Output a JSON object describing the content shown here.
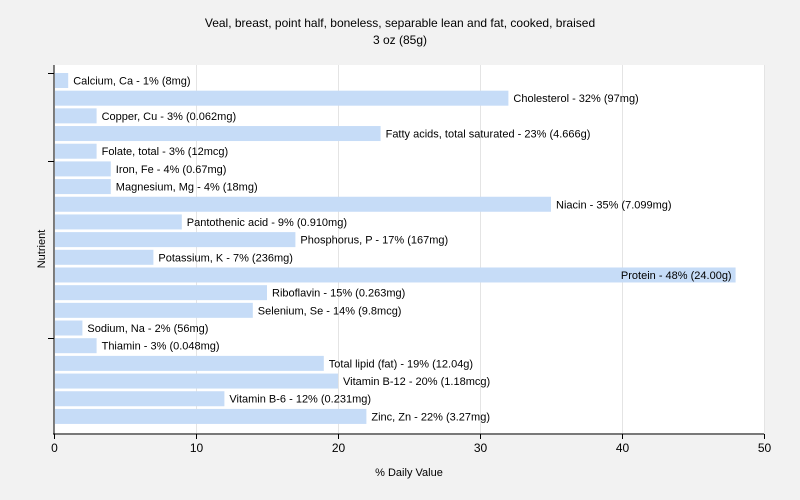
{
  "chart_data": {
    "type": "bar",
    "orientation": "horizontal",
    "title": "Veal, breast, point half, boneless, separable lean and fat, cooked, braised",
    "subtitle": "3 oz (85g)",
    "xlabel": "% Daily Value",
    "ylabel": "Nutrient",
    "xlim": [
      0,
      50
    ],
    "xticks": [
      0,
      10,
      20,
      30,
      40,
      50
    ],
    "grid": true,
    "legend": "none",
    "bar_color": "#c6dcf7",
    "categories": [
      "Calcium, Ca",
      "Cholesterol",
      "Copper, Cu",
      "Fatty acids, total saturated",
      "Folate, total",
      "Iron, Fe",
      "Magnesium, Mg",
      "Niacin",
      "Pantothenic acid",
      "Phosphorus, P",
      "Potassium, K",
      "Protein",
      "Riboflavin",
      "Selenium, Se",
      "Sodium, Na",
      "Thiamin",
      "Total lipid (fat)",
      "Vitamin B-12",
      "Vitamin B-6",
      "Zinc, Zn"
    ],
    "values": [
      1,
      32,
      3,
      23,
      3,
      4,
      4,
      35,
      9,
      17,
      7,
      48,
      15,
      14,
      2,
      3,
      19,
      20,
      12,
      22
    ],
    "labels": [
      "Calcium, Ca - 1% (8mg)",
      "Cholesterol - 32% (97mg)",
      "Copper, Cu - 3% (0.062mg)",
      "Fatty acids, total saturated - 23% (4.666g)",
      "Folate, total - 3% (12mcg)",
      "Iron, Fe - 4% (0.67mg)",
      "Magnesium, Mg - 4% (18mg)",
      "Niacin - 35% (7.099mg)",
      "Pantothenic acid - 9% (0.910mg)",
      "Phosphorus, P - 17% (167mg)",
      "Potassium, K - 7% (236mg)",
      "Protein - 48% (24.00g)",
      "Riboflavin - 15% (0.263mg)",
      "Selenium, Se - 14% (9.8mcg)",
      "Sodium, Na - 2% (56mg)",
      "Thiamin - 3% (0.048mg)",
      "Total lipid (fat) - 19% (12.04g)",
      "Vitamin B-12 - 20% (1.18mcg)",
      "Vitamin B-6 - 12% (0.231mg)",
      "Zinc, Zn - 22% (3.27mg)"
    ]
  }
}
